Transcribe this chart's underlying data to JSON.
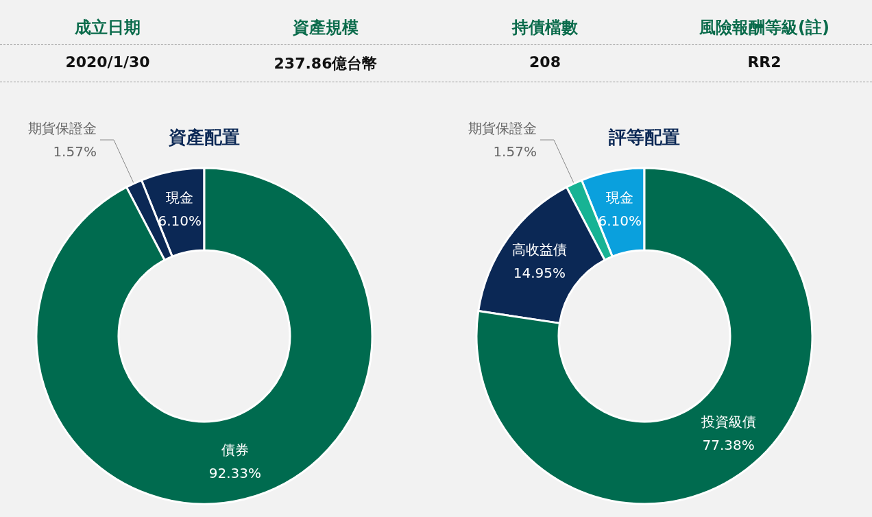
{
  "chart_data": [
    {
      "type": "other",
      "categories": [
        "成立日期",
        "資產規模",
        "持債檔數",
        "風險報酬等級(註)"
      ],
      "annotations": [
        "2020/1/30",
        "237.86億台幣",
        "208",
        "RR2"
      ]
    },
    {
      "type": "donut",
      "title": "資產配置",
      "categories": [
        "現金",
        "期貨保證金",
        "債券"
      ],
      "values": [
        6.1,
        1.57,
        92.33
      ],
      "colors": [
        "#0b2855",
        "#0b2855",
        "#006b4f"
      ],
      "value_labels": [
        "6.10%",
        "1.57%",
        "92.33%"
      ]
    },
    {
      "type": "donut",
      "title": "評等配置",
      "categories": [
        "現金",
        "期貨保證金",
        "高收益債",
        "投資級債"
      ],
      "values": [
        6.1,
        1.57,
        14.95,
        77.38
      ],
      "colors": [
        "#0aa0dd",
        "#17b394",
        "#0b2855",
        "#006b4f"
      ],
      "value_labels": [
        "6.10%",
        "1.57%",
        "14.95%",
        "77.38%"
      ]
    }
  ]
}
